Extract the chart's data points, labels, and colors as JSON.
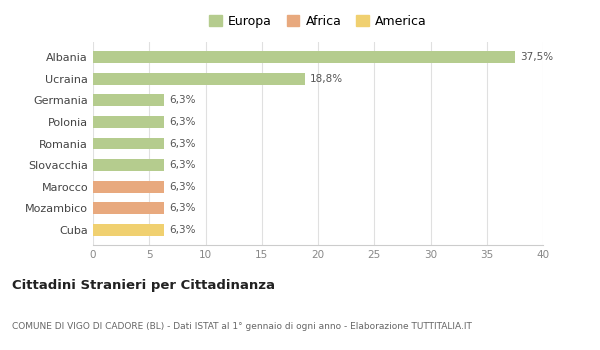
{
  "categories": [
    "Albania",
    "Ucraina",
    "Germania",
    "Polonia",
    "Romania",
    "Slovacchia",
    "Marocco",
    "Mozambico",
    "Cuba"
  ],
  "values": [
    37.5,
    18.8,
    6.3,
    6.3,
    6.3,
    6.3,
    6.3,
    6.3,
    6.3
  ],
  "labels": [
    "37,5%",
    "18,8%",
    "6,3%",
    "6,3%",
    "6,3%",
    "6,3%",
    "6,3%",
    "6,3%",
    "6,3%"
  ],
  "colors": [
    "#b5cc8e",
    "#b5cc8e",
    "#b5cc8e",
    "#b5cc8e",
    "#b5cc8e",
    "#b5cc8e",
    "#e8a97e",
    "#e8a97e",
    "#f0d070"
  ],
  "legend": [
    {
      "label": "Europa",
      "color": "#b5cc8e"
    },
    {
      "label": "Africa",
      "color": "#e8a97e"
    },
    {
      "label": "America",
      "color": "#f0d070"
    }
  ],
  "xlim": [
    0,
    40
  ],
  "xticks": [
    0,
    5,
    10,
    15,
    20,
    25,
    30,
    35,
    40
  ],
  "title": "Cittadini Stranieri per Cittadinanza",
  "subtitle": "COMUNE DI VIGO DI CADORE (BL) - Dati ISTAT al 1° gennaio di ogni anno - Elaborazione TUTTITALIA.IT",
  "background_color": "#ffffff",
  "grid_color": "#e0e0e0"
}
